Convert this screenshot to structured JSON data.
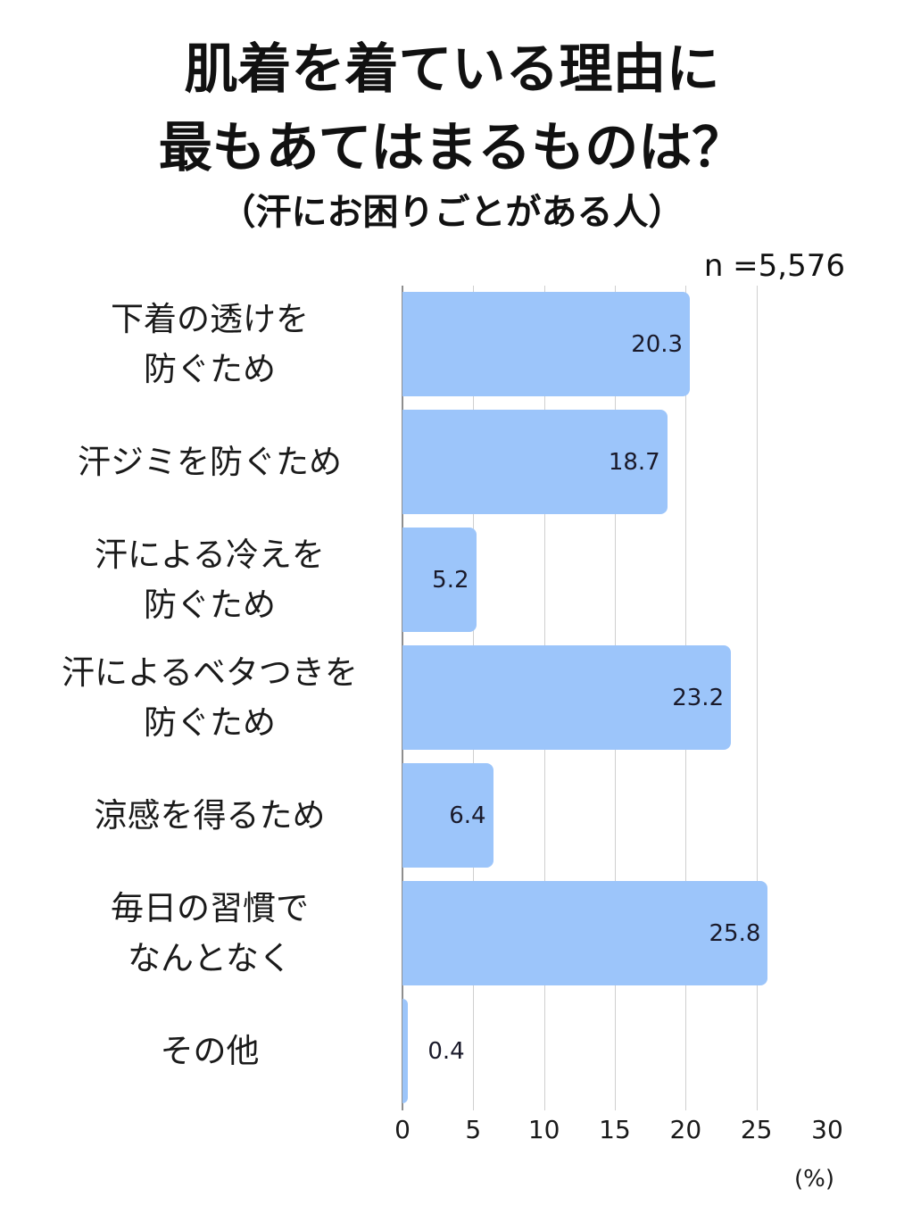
{
  "title": {
    "line1": "肌着を着ている理由に",
    "line2": "最もあてはまるものは？",
    "line3": "（汗にお困りごとがある人）"
  },
  "sample_size": "n =5,576",
  "axis": {
    "ticks": [
      "0",
      "5",
      "10",
      "15",
      "20",
      "25",
      "30"
    ],
    "unit": "(%)"
  },
  "colors": {
    "bar": "#9CC5FA",
    "grid": "#cfcfcf"
  },
  "chart_data": {
    "type": "bar",
    "orientation": "horizontal",
    "title": "肌着を着ている理由に最もあてはまるものは？（汗にお困りごとがある人）",
    "subtitle": "n =5,576",
    "categories": [
      "下着の透けを防ぐため",
      "汗ジミを防ぐため",
      "汗による冷えを防ぐため",
      "汗によるベタつきを防ぐため",
      "涼感を得るため",
      "毎日の習慣でなんとなく",
      "その他"
    ],
    "values": [
      20.3,
      18.7,
      5.2,
      23.2,
      6.4,
      25.8,
      0.4
    ],
    "xlabel": "(%)",
    "ylabel": "",
    "xlim": [
      0,
      30
    ],
    "xticks": [
      0,
      5,
      10,
      15,
      20,
      25,
      30
    ],
    "grid": true,
    "legend": "none",
    "data_labels": true
  },
  "bars": [
    {
      "label": "下着の透けを\n防ぐため",
      "value": "20.3",
      "num": 20.3
    },
    {
      "label": "汗ジミを防ぐため",
      "value": "18.7",
      "num": 18.7
    },
    {
      "label": "汗による冷えを\n防ぐため",
      "value": "5.2",
      "num": 5.2
    },
    {
      "label": "汗によるベタつきを\n防ぐため",
      "value": "23.2",
      "num": 23.2
    },
    {
      "label": "涼感を得るため",
      "value": "6.4",
      "num": 6.4
    },
    {
      "label": "毎日の習慣で\nなんとなく",
      "value": "25.8",
      "num": 25.8
    },
    {
      "label": "その他",
      "value": "0.4",
      "num": 0.4
    }
  ]
}
